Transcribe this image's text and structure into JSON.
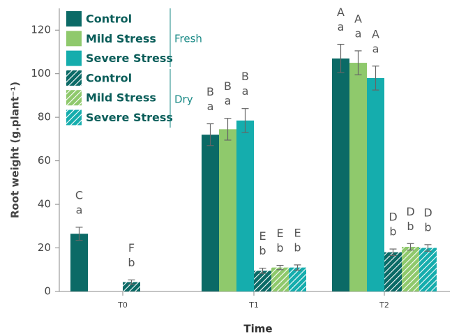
{
  "chart_data": {
    "type": "bar",
    "ylabel": "Root weight (g.plant⁻¹)",
    "xlabel": "Time",
    "categories": [
      "T0",
      "T1",
      "T2"
    ],
    "ylim": [
      0,
      130
    ],
    "yticks": [
      0,
      20,
      40,
      60,
      80,
      100,
      120
    ],
    "legend_groups": [
      {
        "label": "Fresh"
      },
      {
        "label": "Dry"
      }
    ],
    "series": [
      {
        "name": "Control",
        "color": "#0b6a66",
        "hatch": false,
        "values": [
          26.5,
          72,
          107
        ],
        "errors": [
          3,
          5,
          6.5
        ],
        "upper_letters": [
          "C",
          "B",
          "A"
        ],
        "lower_letters": [
          "a",
          "a",
          "a"
        ]
      },
      {
        "name": "Mild Stress",
        "color": "#8fc96c",
        "hatch": false,
        "values": [
          null,
          74.5,
          105
        ],
        "errors": [
          null,
          5,
          5.5
        ],
        "upper_letters": [
          null,
          "B",
          "A"
        ],
        "lower_letters": [
          null,
          "a",
          "a"
        ]
      },
      {
        "name": "Severe Stress",
        "color": "#15adad",
        "hatch": false,
        "values": [
          null,
          78.5,
          98
        ],
        "errors": [
          null,
          5.5,
          5.5
        ],
        "upper_letters": [
          null,
          "B",
          "A"
        ],
        "lower_letters": [
          null,
          "a",
          "a"
        ]
      },
      {
        "name": "Control",
        "color": "#0b6a66",
        "hatch": true,
        "values": [
          4.3,
          9.5,
          18
        ],
        "errors": [
          1,
          1.2,
          1.5
        ],
        "upper_letters": [
          "F",
          "E",
          "D"
        ],
        "lower_letters": [
          "b",
          "b",
          "b"
        ]
      },
      {
        "name": "Mild Stress",
        "color": "#8fc96c",
        "hatch": true,
        "values": [
          null,
          11,
          20.5
        ],
        "errors": [
          null,
          1,
          1.5
        ],
        "upper_letters": [
          null,
          "E",
          "D"
        ],
        "lower_letters": [
          null,
          "b",
          "b"
        ]
      },
      {
        "name": "Severe Stress",
        "color": "#15adad",
        "hatch": true,
        "values": [
          null,
          11,
          20
        ],
        "errors": [
          null,
          1.2,
          1.5
        ],
        "upper_letters": [
          null,
          "E",
          "D"
        ],
        "lower_letters": [
          null,
          "b",
          "b"
        ]
      }
    ]
  }
}
